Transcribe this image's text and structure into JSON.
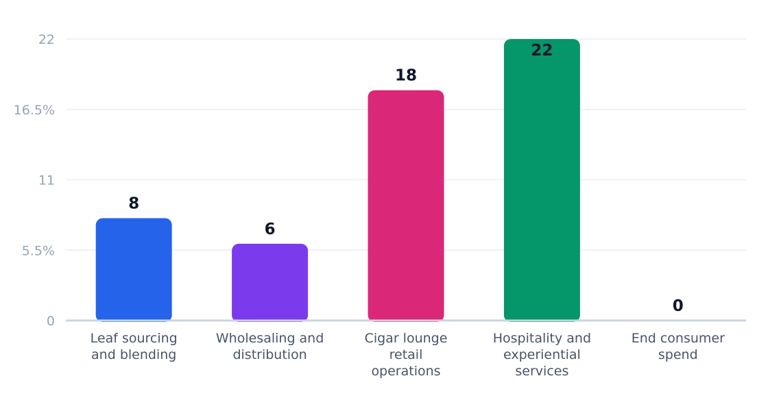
{
  "chart_data": {
    "type": "bar",
    "categories": [
      [
        "Leaf sourcing",
        "and blending"
      ],
      [
        "Wholesaling and",
        "distribution"
      ],
      [
        "Cigar lounge",
        "retail",
        "operations"
      ],
      [
        "Hospitality and",
        "experiential",
        "services"
      ],
      [
        "End consumer",
        "spend"
      ]
    ],
    "values": [
      8,
      6,
      18,
      22,
      0
    ],
    "data_labels": [
      "8",
      "6",
      "18",
      "22",
      "0"
    ],
    "colors": [
      "#2563eb",
      "#7c3aed",
      "#db2777",
      "#059669",
      "#d97706"
    ],
    "ylim": [
      0,
      22
    ],
    "yticks": [
      {
        "value": 0,
        "label": "0"
      },
      {
        "value": 5.5,
        "label": "5.5%"
      },
      {
        "value": 11,
        "label": "11"
      },
      {
        "value": 16.5,
        "label": "16.5%"
      },
      {
        "value": 22,
        "label": "22"
      }
    ],
    "grid": true,
    "gridline_color": "#eef1f5",
    "baseline_color": "#cbd5e1"
  }
}
